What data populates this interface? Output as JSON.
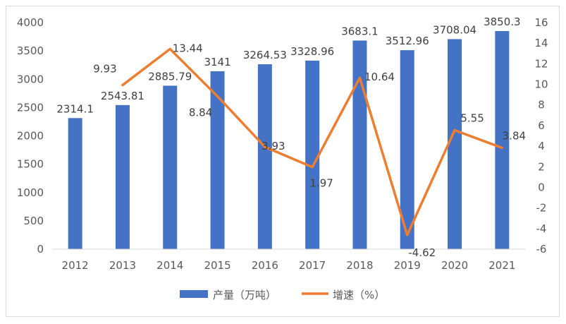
{
  "chart_data": {
    "type": "bar",
    "categories": [
      "2012",
      "2013",
      "2014",
      "2015",
      "2016",
      "2017",
      "2018",
      "2019",
      "2020",
      "2021"
    ],
    "series": [
      {
        "name": "产量（万吨）",
        "type": "bar",
        "axis": "left",
        "color": "#4472C4",
        "values": [
          2314.1,
          2543.81,
          2885.79,
          3141,
          3264.53,
          3328.96,
          3683.1,
          3512.96,
          3708.04,
          3850.3
        ],
        "labels": [
          "2314.1",
          "2543.81",
          "2885.79",
          "3141",
          "3264.53",
          "3328.96",
          "3683.1",
          "3512.96",
          "3708.04",
          "3850.3"
        ]
      },
      {
        "name": "增速（%）",
        "type": "line",
        "axis": "right",
        "color": "#ED7D31",
        "values": [
          null,
          9.93,
          13.44,
          8.84,
          3.93,
          1.97,
          10.64,
          -4.62,
          5.55,
          3.84
        ],
        "labels": [
          "",
          "9.93",
          "13.44",
          "8.84",
          "3.93",
          "1.97",
          "10.64",
          "-4.62",
          "5.55",
          "3.84"
        ]
      }
    ],
    "ylim_left": [
      0,
      4000
    ],
    "yticks_left": [
      "0",
      "500",
      "1000",
      "1500",
      "2000",
      "2500",
      "3000",
      "3500",
      "4000"
    ],
    "ylim_right": [
      -6,
      16
    ],
    "yticks_right": [
      "-6",
      "-4",
      "-2",
      "0",
      "2",
      "4",
      "6",
      "8",
      "10",
      "12",
      "14",
      "16"
    ],
    "grid": false,
    "legend_position": "bottom"
  }
}
